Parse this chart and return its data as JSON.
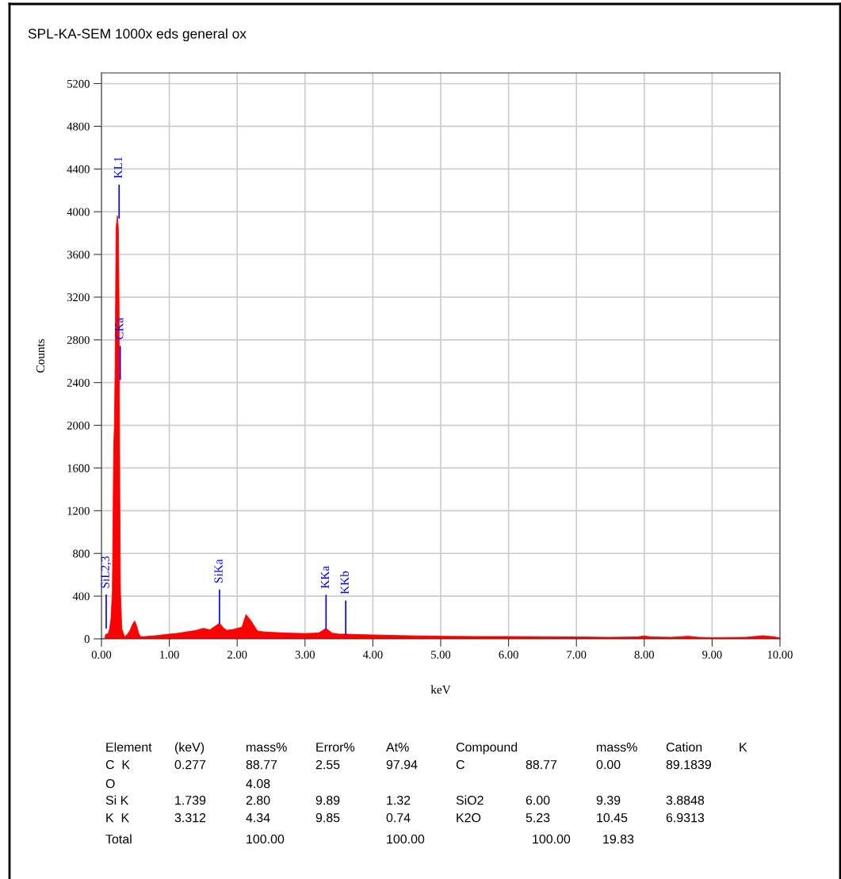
{
  "chart_data": {
    "type": "area",
    "title": "SPL-KA-SEM 1000x eds general ox",
    "xlabel": "keV",
    "ylabel": "Counts",
    "x": [
      0.0,
      0.05,
      0.06,
      0.1,
      0.12,
      0.14,
      0.16,
      0.18,
      0.19,
      0.2,
      0.215,
      0.235,
      0.25,
      0.26,
      0.27,
      0.28,
      0.3,
      0.32,
      0.34,
      0.38,
      0.42,
      0.46,
      0.49,
      0.52,
      0.55,
      0.58,
      0.62,
      0.7,
      0.8,
      0.9,
      1.0,
      1.1,
      1.2,
      1.3,
      1.4,
      1.5,
      1.6,
      1.7,
      1.74,
      1.8,
      1.85,
      1.95,
      2.0,
      2.07,
      2.13,
      2.2,
      2.3,
      2.4,
      2.5,
      2.7,
      3.0,
      3.2,
      3.31,
      3.4,
      3.5,
      3.6,
      3.8,
      4.0,
      4.5,
      5.0,
      5.5,
      6.0,
      6.5,
      7.0,
      7.5,
      7.9,
      8.0,
      8.1,
      8.4,
      8.65,
      8.8,
      9.0,
      9.5,
      9.75,
      9.9,
      10.0
    ],
    "series": [
      {
        "color": "#ff0000",
        "values": [
          0,
          0,
          40,
          50,
          94,
          193,
          440,
          1800,
          2000,
          2470,
          3850,
          3964,
          3830,
          3120,
          1450,
          450,
          94,
          60,
          20,
          40,
          80,
          140,
          168,
          120,
          50,
          20,
          20,
          25,
          30,
          38,
          45,
          50,
          60,
          70,
          80,
          99,
          85,
          130,
          148,
          100,
          80,
          90,
          99,
          110,
          228,
          173,
          74,
          65,
          62,
          55,
          50,
          55,
          99,
          54,
          45,
          45,
          40,
          37,
          30,
          25,
          22,
          22,
          20,
          18,
          15,
          18,
          28,
          18,
          15,
          25,
          15,
          12,
          15,
          30,
          20,
          10
        ]
      }
    ],
    "xlim": [
      0,
      10
    ],
    "ylim": [
      0,
      5300
    ],
    "xticks": [
      {
        "value": 0,
        "label": "0.00"
      },
      {
        "value": 1,
        "label": "1.00"
      },
      {
        "value": 2,
        "label": "2.00"
      },
      {
        "value": 3,
        "label": "3.00"
      },
      {
        "value": 4,
        "label": "4.00"
      },
      {
        "value": 5,
        "label": "5.00"
      },
      {
        "value": 6,
        "label": "6.00"
      },
      {
        "value": 7,
        "label": "7.00"
      },
      {
        "value": 8,
        "label": "8.00"
      },
      {
        "value": 9,
        "label": "9.00"
      },
      {
        "value": 10,
        "label": "10.00"
      }
    ],
    "yticks": [
      0,
      400,
      800,
      1200,
      1600,
      2000,
      2400,
      2800,
      3200,
      3600,
      4000,
      4400,
      4800,
      5200
    ],
    "grid": true,
    "annotations": [
      {
        "text": "KL1",
        "x": 0.26,
        "y": 3940
      },
      {
        "text": "CKa",
        "x": 0.277,
        "y": 2430
      },
      {
        "text": "SiL2,3",
        "x": 0.07,
        "y": 100
      },
      {
        "text": "SiKa",
        "x": 1.74,
        "y": 148
      },
      {
        "text": "KKa",
        "x": 3.31,
        "y": 99
      },
      {
        "text": "KKb",
        "x": 3.6,
        "y": 45
      },
      "Element",
      "(keV)",
      "mass%",
      "Error%",
      "At%",
      "Compound",
      "mass%",
      "Cation",
      "K",
      "C  K",
      "0.277",
      "88.77",
      "2.55",
      "97.94",
      "C",
      "88.77",
      "0.00",
      "89.1839",
      "O",
      "4.08",
      "Si K",
      "1.739",
      "2.80",
      "9.89",
      "1.32",
      "SiO2",
      "6.00",
      "9.39",
      "3.8848",
      "K  K",
      "3.312",
      "4.34",
      "9.85",
      "0.74",
      "K2O",
      "5.23",
      "10.45",
      "6.9313",
      "Total",
      "100.00",
      "100.00",
      "100.00",
      "19.83"
    ]
  }
}
